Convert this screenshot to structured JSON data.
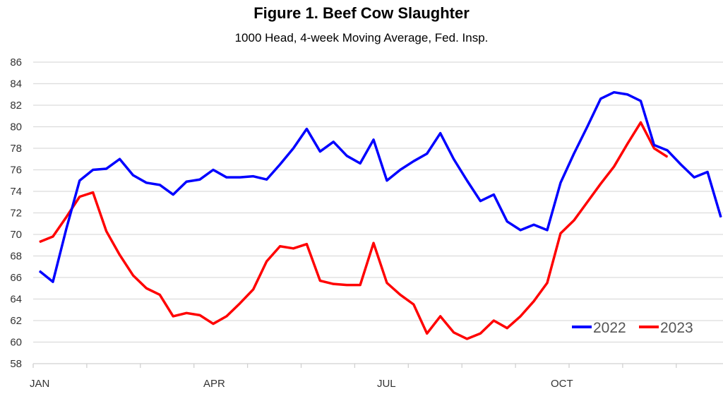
{
  "chart_data": {
    "type": "line",
    "title": "Figure 1. Beef Cow Slaughter",
    "subtitle": "1000 Head, 4-week Moving Average, Fed. Insp.",
    "xlabel": "",
    "ylabel": "",
    "ylim": [
      58,
      86
    ],
    "yticks": [
      58,
      60,
      62,
      64,
      66,
      68,
      70,
      72,
      74,
      76,
      78,
      80,
      82,
      84,
      86
    ],
    "xtick_labels": [
      {
        "label": "JAN",
        "week": 1
      },
      {
        "label": "APR",
        "week": 14
      },
      {
        "label": "JUL",
        "week": 27
      },
      {
        "label": "OCT",
        "week": 40
      }
    ],
    "x_weeks": 52,
    "grid": true,
    "legend_position": "bottom-right",
    "series": [
      {
        "name": "2022",
        "color": "#0000ff",
        "values": [
          66.6,
          65.6,
          70.5,
          75,
          76,
          76.1,
          77,
          75.5,
          74.8,
          74.6,
          73.7,
          74.9,
          75.1,
          76,
          75.3,
          75.3,
          75.4,
          75.1,
          76.5,
          78,
          79.8,
          77.7,
          78.6,
          77.3,
          76.6,
          78.8,
          75,
          76,
          76.8,
          77.5,
          79.4,
          77,
          75,
          73.1,
          73.7,
          71.2,
          70.4,
          70.9,
          70.4,
          74.8,
          77.5,
          80,
          82.6,
          83.2,
          83,
          82.4,
          78.3,
          77.8,
          76.5,
          75.3,
          75.8,
          71.6
        ]
      },
      {
        "name": "2023",
        "color": "#ff0000",
        "values": [
          69.3,
          69.8,
          71.6,
          73.5,
          73.9,
          70.3,
          68.1,
          66.2,
          65,
          64.4,
          62.4,
          62.7,
          62.5,
          61.7,
          62.4,
          63.6,
          64.9,
          67.5,
          68.9,
          68.7,
          69.1,
          65.7,
          65.4,
          65.3,
          65.3,
          69.2,
          65.5,
          64.4,
          63.5,
          60.8,
          62.4,
          60.9,
          60.3,
          60.8,
          62,
          61.3,
          62.4,
          63.8,
          65.5,
          70.1,
          71.3,
          73,
          74.7,
          76.3,
          78.4,
          80.4,
          78,
          77.2
        ]
      }
    ]
  }
}
